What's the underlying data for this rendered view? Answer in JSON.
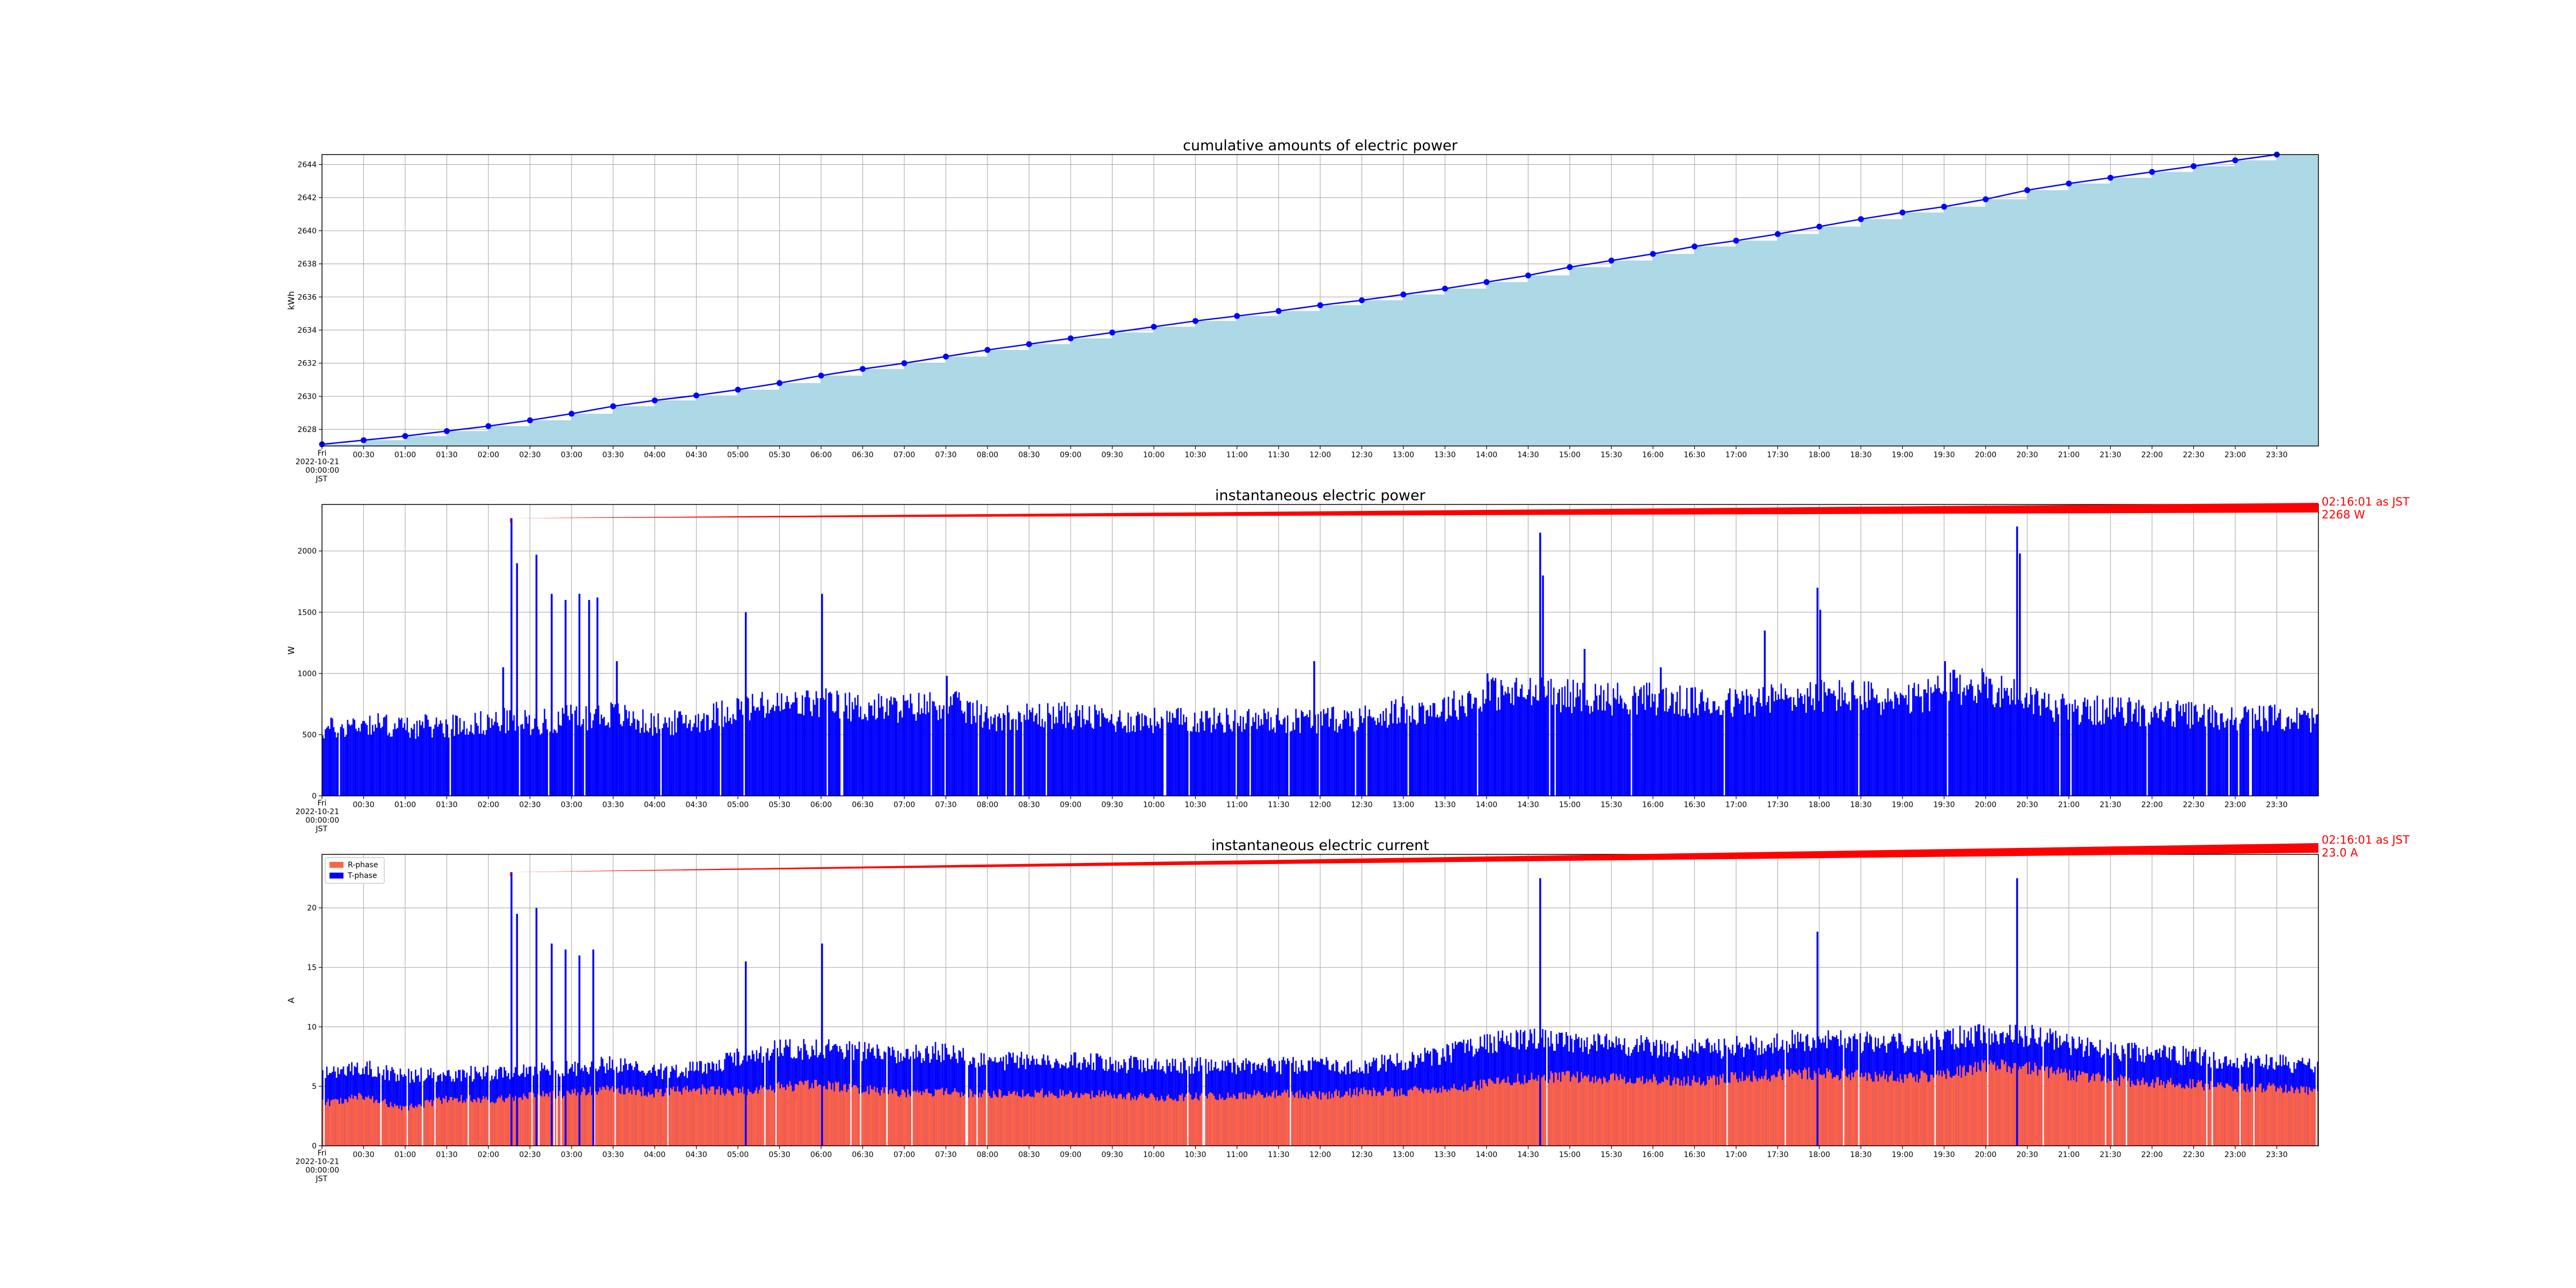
{
  "colors": {
    "cumulative_fill": "#add8e6",
    "cumulative_line": "#0000ff",
    "power_bars": "#0000ff",
    "r_phase": "#ff6347",
    "t_phase": "#0000ff",
    "annotation": "#ff0000",
    "grid": "#b0b0b0"
  },
  "x_ticks": [
    "00:30",
    "01:00",
    "01:30",
    "02:00",
    "02:30",
    "03:00",
    "03:30",
    "04:00",
    "04:30",
    "05:00",
    "05:30",
    "06:00",
    "06:30",
    "07:00",
    "07:30",
    "08:00",
    "08:30",
    "09:00",
    "09:30",
    "10:00",
    "10:30",
    "11:00",
    "11:30",
    "12:00",
    "12:30",
    "13:00",
    "13:30",
    "14:00",
    "14:30",
    "15:00",
    "15:30",
    "16:00",
    "16:30",
    "17:00",
    "17:30",
    "18:00",
    "18:30",
    "19:00",
    "19:30",
    "20:00",
    "20:30",
    "21:00",
    "21:30",
    "22:00",
    "22:30",
    "23:00",
    "23:30"
  ],
  "x_origin_label": [
    "Fri",
    "2022-10-21",
    "00:00:00",
    "JST"
  ],
  "chart_data": [
    {
      "type": "line",
      "title": "cumulative amounts of electric power",
      "ylabel": "kWh",
      "xlabel": "",
      "xlim": [
        "2022-10-21 00:00:00",
        "2022-10-21 24:00:00"
      ],
      "ylim": [
        2627,
        2644.6
      ],
      "yticks": [
        2628,
        2630,
        2632,
        2634,
        2636,
        2638,
        2640,
        2642,
        2644
      ],
      "grid": true,
      "x": [
        "00:00",
        "00:30",
        "01:00",
        "01:30",
        "02:00",
        "02:30",
        "03:00",
        "03:30",
        "04:00",
        "04:30",
        "05:00",
        "05:30",
        "06:00",
        "06:30",
        "07:00",
        "07:30",
        "08:00",
        "08:30",
        "09:00",
        "09:30",
        "10:00",
        "10:30",
        "11:00",
        "11:30",
        "12:00",
        "12:30",
        "13:00",
        "13:30",
        "14:00",
        "14:30",
        "15:00",
        "15:30",
        "16:00",
        "16:30",
        "17:00",
        "17:30",
        "18:00",
        "18:30",
        "19:00",
        "19:30",
        "20:00",
        "20:30",
        "21:00",
        "21:30",
        "22:00",
        "22:30",
        "23:00",
        "23:30"
      ],
      "values": [
        2627.1,
        2627.35,
        2627.6,
        2627.9,
        2628.2,
        2628.55,
        2628.95,
        2629.4,
        2629.75,
        2630.05,
        2630.4,
        2630.8,
        2631.25,
        2631.65,
        2632.0,
        2632.4,
        2632.8,
        2633.15,
        2633.5,
        2633.85,
        2634.2,
        2634.55,
        2634.85,
        2635.15,
        2635.5,
        2635.8,
        2636.15,
        2636.5,
        2636.9,
        2637.3,
        2637.8,
        2638.2,
        2638.6,
        2639.05,
        2639.4,
        2639.8,
        2640.25,
        2640.7,
        2641.1,
        2641.45,
        2641.9,
        2642.45,
        2642.85,
        2643.2,
        2643.55,
        2643.9,
        2644.25,
        2644.6
      ]
    },
    {
      "type": "bar",
      "title": "instantaneous electric power",
      "ylabel": "W",
      "xlabel": "",
      "ylim": [
        0,
        2380
      ],
      "yticks": [
        0,
        500,
        1000,
        1500,
        2000
      ],
      "grid": true,
      "base_profile": {
        "times": [
          "00:00",
          "00:30",
          "01:00",
          "01:30",
          "02:00",
          "02:15",
          "02:30",
          "03:00",
          "03:30",
          "04:00",
          "04:30",
          "05:00",
          "05:30",
          "06:00",
          "06:30",
          "07:00",
          "07:30",
          "08:00",
          "08:30",
          "09:00",
          "09:30",
          "10:00",
          "10:30",
          "11:00",
          "11:30",
          "12:00",
          "12:30",
          "13:00",
          "13:30",
          "14:00",
          "14:30",
          "15:00",
          "15:30",
          "16:00",
          "16:30",
          "17:00",
          "17:30",
          "18:00",
          "18:30",
          "19:00",
          "19:30",
          "20:00",
          "20:30",
          "21:00",
          "21:30",
          "22:00",
          "22:30",
          "23:00",
          "23:30",
          "24:00"
        ],
        "values": [
          540,
          600,
          560,
          580,
          600,
          620,
          600,
          640,
          670,
          580,
          620,
          720,
          740,
          760,
          720,
          720,
          760,
          640,
          660,
          660,
          620,
          620,
          620,
          620,
          620,
          620,
          640,
          700,
          720,
          840,
          840,
          820,
          800,
          800,
          760,
          760,
          800,
          820,
          820,
          760,
          880,
          900,
          800,
          700,
          700,
          680,
          660,
          640,
          640,
          620
        ]
      },
      "peaks": [
        {
          "time": "02:10",
          "value": 1050
        },
        {
          "time": "02:16",
          "value": 2268
        },
        {
          "time": "02:20",
          "value": 1900
        },
        {
          "time": "02:34",
          "value": 1970
        },
        {
          "time": "02:45",
          "value": 1650
        },
        {
          "time": "02:55",
          "value": 1600
        },
        {
          "time": "03:05",
          "value": 1650
        },
        {
          "time": "03:12",
          "value": 1600
        },
        {
          "time": "03:18",
          "value": 1620
        },
        {
          "time": "03:32",
          "value": 1100
        },
        {
          "time": "05:05",
          "value": 1500
        },
        {
          "time": "06:00",
          "value": 1650
        },
        {
          "time": "07:30",
          "value": 980
        },
        {
          "time": "11:55",
          "value": 1100
        },
        {
          "time": "14:00",
          "value": 1000
        },
        {
          "time": "14:38",
          "value": 2150
        },
        {
          "time": "14:40",
          "value": 1800
        },
        {
          "time": "15:10",
          "value": 1200
        },
        {
          "time": "16:05",
          "value": 1050
        },
        {
          "time": "17:20",
          "value": 1350
        },
        {
          "time": "17:58",
          "value": 1700
        },
        {
          "time": "18:00",
          "value": 1520
        },
        {
          "time": "19:30",
          "value": 1100
        },
        {
          "time": "20:22",
          "value": 2200
        },
        {
          "time": "20:24",
          "value": 1980
        }
      ],
      "annotation": {
        "line1": "02:16:01 as JST",
        "line2": "2268 W",
        "time": "02:16",
        "value": 2268
      }
    },
    {
      "type": "area",
      "title": "instantaneous electric current",
      "ylabel": "A",
      "xlabel": "",
      "ylim": [
        0,
        24.5
      ],
      "yticks": [
        0,
        5,
        10,
        15,
        20
      ],
      "grid": true,
      "legend": {
        "placement": "upper-left"
      },
      "series": [
        {
          "name": "R-phase",
          "times": [
            "00:00",
            "00:30",
            "01:00",
            "01:30",
            "02:00",
            "02:30",
            "03:00",
            "03:30",
            "04:00",
            "04:30",
            "05:00",
            "05:30",
            "06:00",
            "06:30",
            "07:00",
            "07:30",
            "08:00",
            "08:30",
            "09:00",
            "09:30",
            "10:00",
            "10:30",
            "11:00",
            "11:30",
            "12:00",
            "12:30",
            "13:00",
            "13:30",
            "14:00",
            "14:30",
            "15:00",
            "15:30",
            "16:00",
            "16:30",
            "17:00",
            "17:30",
            "18:00",
            "18:30",
            "19:00",
            "19:30",
            "20:00",
            "20:30",
            "21:00",
            "21:30",
            "22:00",
            "22:30",
            "23:00",
            "23:30",
            "24:00"
          ],
          "values": [
            3.6,
            4.2,
            3.2,
            4.0,
            3.9,
            4.2,
            4.5,
            4.8,
            4.5,
            4.8,
            4.6,
            5.0,
            5.2,
            4.8,
            4.5,
            4.6,
            4.4,
            4.5,
            4.4,
            4.3,
            4.1,
            4.2,
            4.3,
            4.4,
            4.3,
            4.6,
            4.6,
            4.9,
            5.2,
            5.8,
            5.9,
            5.7,
            5.6,
            5.5,
            5.8,
            6.0,
            6.2,
            6.0,
            5.8,
            6.0,
            6.8,
            6.6,
            6.0,
            5.6,
            5.4,
            5.2,
            5.0,
            4.9,
            4.7
          ]
        },
        {
          "name": "T-phase",
          "times": [
            "00:00",
            "00:30",
            "01:00",
            "01:30",
            "02:00",
            "02:30",
            "03:00",
            "03:30",
            "04:00",
            "04:30",
            "05:00",
            "05:30",
            "06:00",
            "06:30",
            "07:00",
            "07:30",
            "08:00",
            "08:30",
            "09:00",
            "09:30",
            "10:00",
            "10:30",
            "11:00",
            "11:30",
            "12:00",
            "12:30",
            "13:00",
            "13:30",
            "14:00",
            "14:30",
            "15:00",
            "15:30",
            "16:00",
            "16:30",
            "17:00",
            "17:30",
            "18:00",
            "18:30",
            "19:00",
            "19:30",
            "20:00",
            "20:30",
            "21:00",
            "21:30",
            "22:00",
            "22:30",
            "23:00",
            "23:30",
            "24:00"
          ],
          "values": [
            6.0,
            6.6,
            6.0,
            6.0,
            6.2,
            6.4,
            6.6,
            7.0,
            6.3,
            6.5,
            7.5,
            8.2,
            8.2,
            8.0,
            7.8,
            8.0,
            7.2,
            7.2,
            7.2,
            7.0,
            6.8,
            6.8,
            6.8,
            6.8,
            6.8,
            6.8,
            7.2,
            7.8,
            8.8,
            9.0,
            8.8,
            8.6,
            8.4,
            8.2,
            8.4,
            8.8,
            9.0,
            8.8,
            8.6,
            9.0,
            9.5,
            9.4,
            8.6,
            8.0,
            7.8,
            7.6,
            7.2,
            7.0,
            6.6
          ]
        }
      ],
      "peaks": [
        {
          "time": "02:16",
          "value": 23.0
        },
        {
          "time": "02:20",
          "value": 19.5
        },
        {
          "time": "02:34",
          "value": 20.0
        },
        {
          "time": "02:45",
          "value": 17.0
        },
        {
          "time": "02:55",
          "value": 16.5
        },
        {
          "time": "03:05",
          "value": 16.0
        },
        {
          "time": "03:15",
          "value": 16.5
        },
        {
          "time": "05:05",
          "value": 15.5
        },
        {
          "time": "06:00",
          "value": 17.0
        },
        {
          "time": "14:38",
          "value": 22.5
        },
        {
          "time": "17:58",
          "value": 18.0
        },
        {
          "time": "20:22",
          "value": 22.5
        }
      ],
      "annotation": {
        "line1": "02:16:01 as JST",
        "line2": "23.0 A",
        "time": "02:16",
        "value": 23.0
      }
    }
  ]
}
